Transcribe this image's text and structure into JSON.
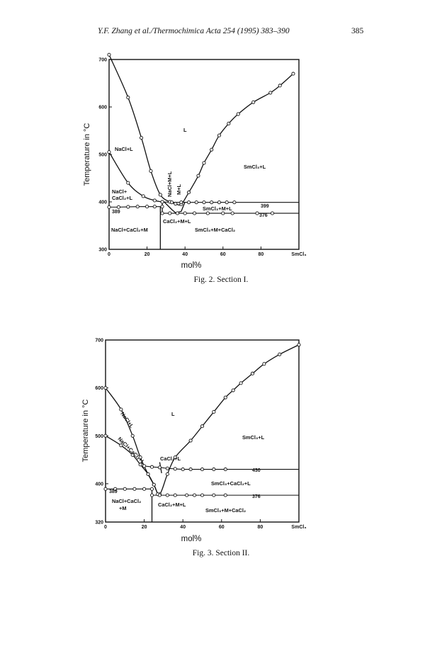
{
  "header": {
    "running_head": "Y.F. Zhang et al./Thermochimica Acta 254 (1995) 383–390",
    "page_number": "385"
  },
  "figures": [
    {
      "id": "fig2",
      "caption": "Fig. 2. Section I.",
      "y_axis_label": "Temperature in °C",
      "x_axis_label": "mol%",
      "x_tick_labels": [
        "0",
        "20",
        "40",
        "60",
        "80",
        "SmCl₃"
      ],
      "y_tick_labels": [
        "700",
        "600",
        "500",
        "400",
        "300"
      ],
      "regions": [
        "L",
        "NaCl+L",
        "NaCl+ CaCl₂+L",
        "NaCl+M+L",
        "M+L",
        "SmCl₃+L",
        "SmCl₃+M+L",
        "CaCl₂+M+L",
        "SmCl₃+M+CaCl₂",
        "NaCl+CaCl₂+M"
      ],
      "annotations": [
        "389",
        "399",
        "376"
      ]
    },
    {
      "id": "fig3",
      "caption": "Fig. 3. Section II.",
      "y_axis_label": "Temperature in °C",
      "x_axis_label": "mol%",
      "x_tick_labels": [
        "0",
        "20",
        "40",
        "60",
        "80",
        "SmCl₃"
      ],
      "y_tick_labels": [
        "700",
        "600",
        "500",
        "400",
        "320"
      ],
      "regions": [
        "L",
        "NaCl+L",
        "NaCl+CaCl₂+L",
        "CaCl₂+L",
        "SmCl₃+L",
        "SmCl₃+CaCl₂+L",
        "NaCl+CaCl₂ +M",
        "CaCl₂+M+L",
        "SmCl₃+M+CaCl₂"
      ],
      "annotations": [
        "389",
        "430",
        "376"
      ]
    }
  ],
  "chart_data": [
    {
      "type": "scatter",
      "title": "",
      "xlabel": "mol%",
      "ylabel": "Temperature in °C",
      "xlim": [
        0,
        100
      ],
      "ylim": [
        300,
        700
      ],
      "x_ticks": [
        0,
        20,
        40,
        60,
        80,
        100
      ],
      "y_ticks": [
        300,
        400,
        500,
        600,
        700
      ],
      "series": [
        {
          "kind": "liquidus",
          "smooth": true,
          "marked": true,
          "points": [
            [
              0,
              710
            ],
            [
              10,
              620
            ],
            [
              17,
              535
            ],
            [
              22,
              465
            ],
            [
              27,
              415
            ],
            [
              32,
              400
            ],
            [
              35,
              396
            ],
            [
              38,
              395
            ],
            [
              42,
              420
            ],
            [
              47,
              455
            ],
            [
              50,
              482
            ],
            [
              54,
              510
            ],
            [
              58,
              540
            ],
            [
              63,
              565
            ],
            [
              68,
              585
            ],
            [
              76,
              610
            ],
            [
              85,
              630
            ],
            [
              90,
              645
            ],
            [
              97,
              670
            ]
          ]
        },
        {
          "kind": "liquidus",
          "smooth": true,
          "marked": true,
          "points": [
            [
              0,
              505
            ],
            [
              10,
              440
            ],
            [
              18,
              412
            ],
            [
              24,
              403
            ],
            [
              28,
              400
            ]
          ]
        },
        {
          "kind": "liquidus",
          "smooth": false,
          "marked": false,
          "points": [
            [
              29,
              400
            ],
            [
              33,
              384
            ],
            [
              35,
              377
            ]
          ]
        },
        {
          "kind": "liquidus",
          "smooth": false,
          "marked": false,
          "points": [
            [
              35,
              377
            ],
            [
              38,
              380
            ],
            [
              40,
              400
            ]
          ]
        },
        {
          "kind": "isotherm",
          "smooth": false,
          "marked": true,
          "points": [
            [
              0,
              389
            ],
            [
              5,
              389
            ],
            [
              10,
              389.5
            ],
            [
              15,
              390
            ],
            [
              20,
              390
            ],
            [
              24,
              390
            ],
            [
              28,
              390
            ]
          ]
        },
        {
          "kind": "isotherm",
          "smooth": false,
          "marked": true,
          "points": [
            [
              28,
              400
            ],
            [
              33,
              399
            ],
            [
              38,
              399
            ],
            [
              42,
              399
            ],
            [
              46,
              399
            ],
            [
              50,
              399
            ],
            [
              54,
              399
            ],
            [
              58,
              399
            ],
            [
              62,
              399
            ],
            [
              66,
              399
            ],
            [
              100,
              399
            ]
          ]
        },
        {
          "kind": "isotherm",
          "smooth": false,
          "marked": true,
          "points": [
            [
              28,
              376
            ],
            [
              32,
              376
            ],
            [
              36,
              376
            ],
            [
              40,
              376
            ],
            [
              45,
              376
            ],
            [
              52,
              376
            ],
            [
              60,
              376
            ],
            [
              65,
              376
            ],
            [
              78,
              376
            ],
            [
              86,
              376
            ],
            [
              100,
              376
            ]
          ]
        },
        {
          "kind": "boundary",
          "smooth": false,
          "marked": false,
          "points": [
            [
              27,
              390
            ],
            [
              27,
              300
            ]
          ]
        },
        {
          "kind": "boundary",
          "smooth": false,
          "marked": false,
          "points": [
            [
              28,
              400
            ],
            [
              28,
              376
            ]
          ]
        }
      ]
    },
    {
      "type": "scatter",
      "title": "",
      "xlabel": "mol%",
      "ylabel": "Temperature in °C",
      "xlim": [
        0,
        100
      ],
      "ylim": [
        320,
        700
      ],
      "x_ticks": [
        0,
        20,
        40,
        60,
        80,
        100
      ],
      "y_ticks": [
        400,
        500,
        600,
        700
      ],
      "series": [
        {
          "kind": "liquidus",
          "smooth": true,
          "marked": true,
          "points": [
            [
              0,
              600
            ],
            [
              8,
              555
            ],
            [
              14,
              500
            ],
            [
              18,
              455
            ],
            [
              22,
              420
            ],
            [
              25,
              398
            ],
            [
              28,
              378
            ],
            [
              32,
              420
            ],
            [
              36,
              455
            ],
            [
              44,
              490
            ],
            [
              50,
              520
            ],
            [
              56,
              550
            ],
            [
              62,
              580
            ],
            [
              66,
              595
            ],
            [
              70,
              610
            ],
            [
              76,
              630
            ],
            [
              82,
              650
            ],
            [
              90,
              670
            ],
            [
              100,
              690
            ]
          ]
        },
        {
          "kind": "liquidus",
          "smooth": true,
          "marked": true,
          "points": [
            [
              0,
              500
            ],
            [
              8,
              480
            ],
            [
              14,
              460
            ],
            [
              18,
              440
            ],
            [
              22,
              420
            ],
            [
              25,
              398
            ],
            [
              27,
              378
            ]
          ]
        },
        {
          "kind": "isotherm",
          "smooth": false,
          "marked": true,
          "points": [
            [
              20,
              437
            ],
            [
              24,
              435
            ],
            [
              28,
              434
            ],
            [
              32,
              432
            ],
            [
              36,
              431
            ],
            [
              40,
              430
            ],
            [
              44,
              430
            ],
            [
              50,
              430
            ],
            [
              56,
              430
            ],
            [
              62,
              430
            ],
            [
              100,
              430
            ]
          ]
        },
        {
          "kind": "isotherm",
          "smooth": false,
          "marked": true,
          "points": [
            [
              0,
              389
            ],
            [
              5,
              389
            ],
            [
              10,
              389
            ],
            [
              15,
              389
            ],
            [
              20,
              389
            ],
            [
              24,
              389
            ]
          ]
        },
        {
          "kind": "isotherm",
          "smooth": false,
          "marked": true,
          "points": [
            [
              24,
              376
            ],
            [
              28,
              376
            ],
            [
              32,
              376
            ],
            [
              36,
              376
            ],
            [
              42,
              376
            ],
            [
              46,
              376
            ],
            [
              50,
              376
            ],
            [
              56,
              376
            ],
            [
              62,
              376
            ],
            [
              100,
              376
            ]
          ]
        },
        {
          "kind": "boundary",
          "smooth": false,
          "marked": false,
          "points": [
            [
              24,
              389
            ],
            [
              24,
              320
            ]
          ]
        },
        {
          "kind": "boundary",
          "smooth": false,
          "marked": false,
          "points": [
            [
              28,
              445
            ],
            [
              29,
              422
            ]
          ]
        }
      ]
    }
  ]
}
